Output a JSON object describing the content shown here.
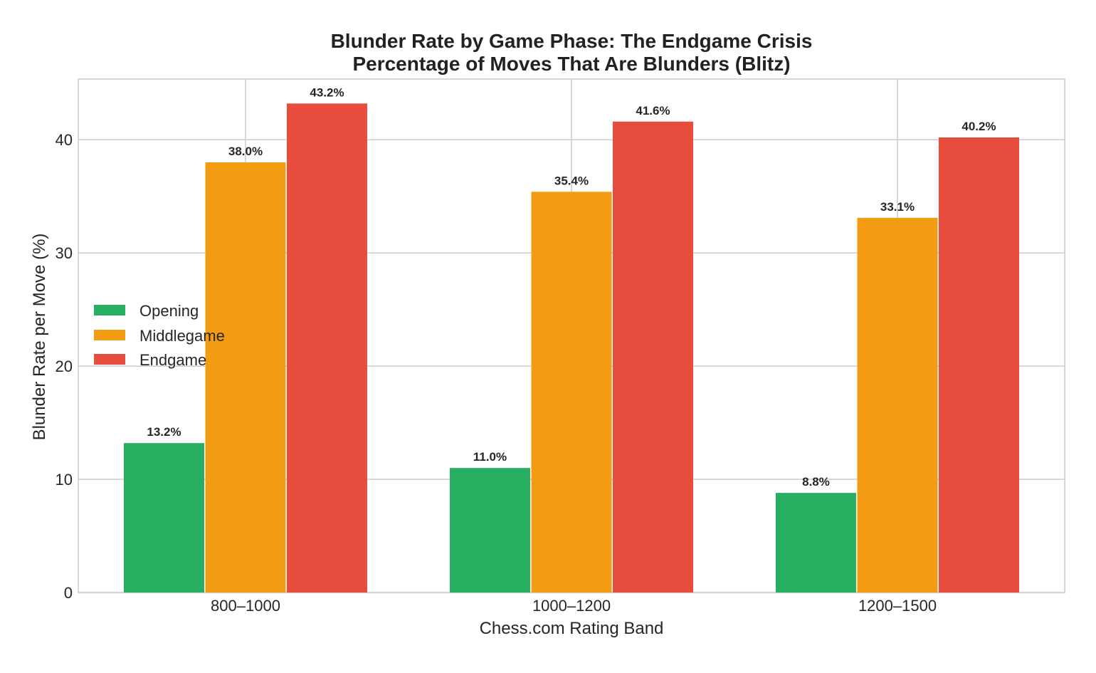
{
  "chart_data": {
    "type": "bar",
    "title": "Blunder Rate by Game Phase: The Endgame Crisis",
    "subtitle": "Percentage of Moves That Are Blunders (Blitz)",
    "xlabel": "Chess.com Rating Band",
    "ylabel": "Blunder Rate per Move (%)",
    "categories": [
      "800–1000",
      "1000–1200",
      "1200–1500"
    ],
    "series": [
      {
        "name": "Opening",
        "color": "#27ae60",
        "values": [
          13.2,
          11.0,
          8.8
        ],
        "labels": [
          "13.2%",
          "11.0%",
          "8.8%"
        ]
      },
      {
        "name": "Middlegame",
        "color": "#f39c12",
        "values": [
          38.0,
          35.4,
          33.1
        ],
        "labels": [
          "38.0%",
          "35.4%",
          "33.1%"
        ]
      },
      {
        "name": "Endgame",
        "color": "#e74c3c",
        "values": [
          43.2,
          41.6,
          40.2
        ],
        "labels": [
          "43.2%",
          "41.6%",
          "40.2%"
        ]
      }
    ],
    "ylim": [
      0,
      45.36
    ],
    "yticks": [
      0,
      10,
      20,
      30,
      40
    ],
    "ytick_labels": [
      "0",
      "10",
      "20",
      "30",
      "40"
    ],
    "grid": true,
    "legend_position": "center-left"
  }
}
